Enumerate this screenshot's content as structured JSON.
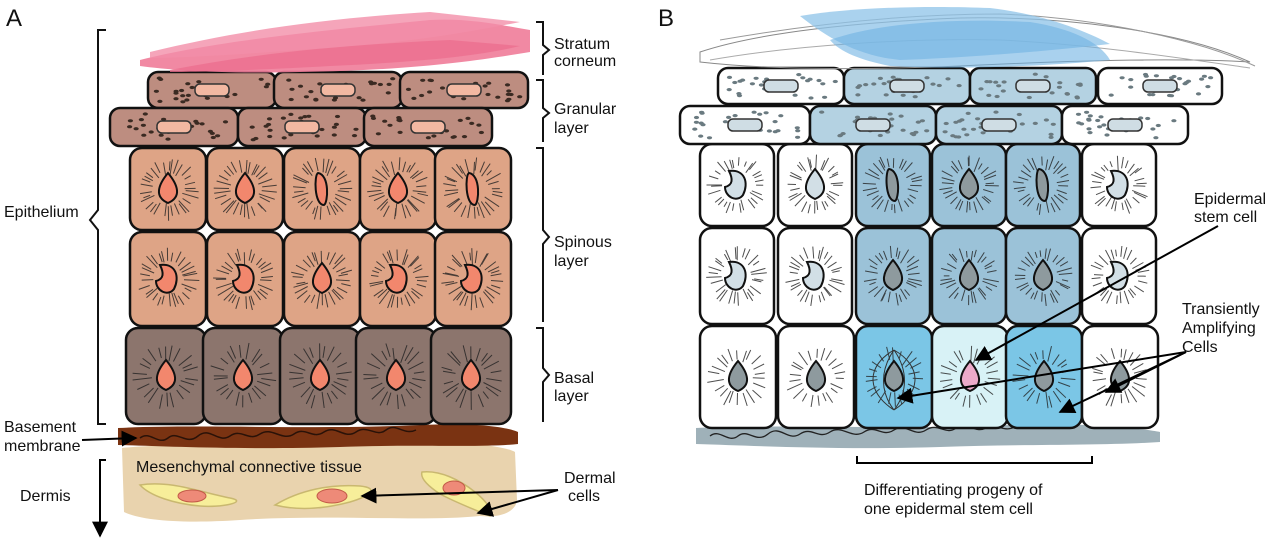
{
  "panel_a": {
    "letter": "A",
    "labels": {
      "stratum_corneum": [
        "Stratum",
        "corneum"
      ],
      "granular": [
        "Granular",
        "layer"
      ],
      "spinous": [
        "Spinous",
        "layer"
      ],
      "basal": [
        "Basal",
        "layer"
      ],
      "epithelium": "Epithelium",
      "basement": [
        "Basement",
        "membrane"
      ],
      "mesenchymal": "Mesenchymal connective  tissue",
      "dermal": [
        "Dermal",
        "cells"
      ],
      "dermis": "Dermis"
    }
  },
  "panel_b": {
    "letter": "B",
    "labels": {
      "stem": [
        "Epidermal",
        "stem cell"
      ],
      "ta": [
        "Transiently",
        "Amplifying",
        "Cells"
      ],
      "progeny": [
        "Differentiating progeny of",
        "one epidermal stem cell"
      ]
    }
  },
  "colors": {
    "corneum_a": "#f07c99",
    "granular_a": "#bd8d80",
    "spinous_a": "#dea486",
    "basal_a": "#8c756d",
    "nucleus_a": "#f2876d",
    "basement_a": "#7a3312",
    "dermis_bg": "#e9d3ae",
    "dermal_cell": "#f7ee9a",
    "blue_light": "#b4d2e2",
    "blue_dark": "#9bc2d8",
    "basal_blue": "#7bc6e6",
    "stem_fill": "#d8f2f6",
    "stem_nucleus": "#ecaac9",
    "nucleus_b": "#8e9a9e",
    "basement_b": "#9fb1b9"
  }
}
